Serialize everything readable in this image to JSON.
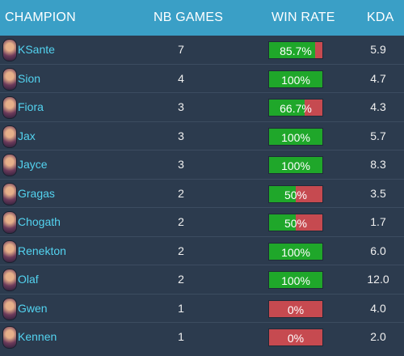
{
  "headers": {
    "champion": "CHAMPION",
    "games": "NB GAMES",
    "winrate": "WIN RATE",
    "kda": "KDA"
  },
  "colors": {
    "header_bg": "#3a9fc6",
    "row_bg": "#2c3b4e",
    "win": "#1fa72a",
    "loss": "#c64a50",
    "name_text": "#53d3f0"
  },
  "rows": [
    {
      "name": "KSante",
      "games": "7",
      "winrate_label": "85.7%",
      "winrate": 0.857,
      "kda": "5.9"
    },
    {
      "name": "Sion",
      "games": "4",
      "winrate_label": "100%",
      "winrate": 1.0,
      "kda": "4.7"
    },
    {
      "name": "Fiora",
      "games": "3",
      "winrate_label": "66.7%",
      "winrate": 0.667,
      "kda": "4.3"
    },
    {
      "name": "Jax",
      "games": "3",
      "winrate_label": "100%",
      "winrate": 1.0,
      "kda": "5.7"
    },
    {
      "name": "Jayce",
      "games": "3",
      "winrate_label": "100%",
      "winrate": 1.0,
      "kda": "8.3"
    },
    {
      "name": "Gragas",
      "games": "2",
      "winrate_label": "50%",
      "winrate": 0.5,
      "kda": "3.5"
    },
    {
      "name": "Chogath",
      "games": "2",
      "winrate_label": "50%",
      "winrate": 0.5,
      "kda": "1.7"
    },
    {
      "name": "Renekton",
      "games": "2",
      "winrate_label": "100%",
      "winrate": 1.0,
      "kda": "6.0"
    },
    {
      "name": "Olaf",
      "games": "2",
      "winrate_label": "100%",
      "winrate": 1.0,
      "kda": "12.0"
    },
    {
      "name": "Gwen",
      "games": "1",
      "winrate_label": "0%",
      "winrate": 0.0,
      "kda": "4.0"
    },
    {
      "name": "Kennen",
      "games": "1",
      "winrate_label": "0%",
      "winrate": 0.0,
      "kda": "2.0"
    }
  ]
}
